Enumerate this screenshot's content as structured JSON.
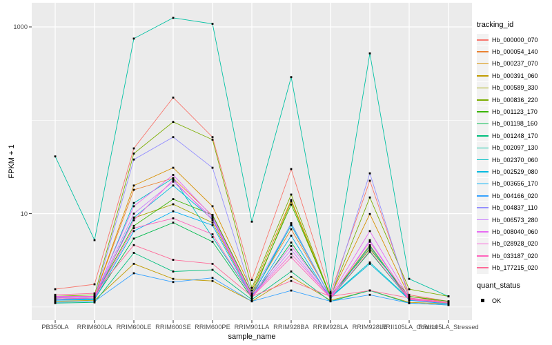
{
  "chart_data": {
    "type": "line",
    "title": "",
    "xlabel": "sample_name",
    "ylabel": "FPKM + 1",
    "y_scale": "log10",
    "grid": true,
    "panel_bg": "#EBEBEB",
    "grid_color": "#FFFFFF",
    "point_marker": "black-square",
    "y_ticks": [
      {
        "value": 1000,
        "label": "1000"
      },
      {
        "value": 10,
        "label": "10"
      }
    ],
    "y_minor_gridlines": [
      100,
      1
    ],
    "ylim": [
      0.75,
      1800
    ],
    "x_categories": [
      "PB350LA",
      "RRIM600LA",
      "RRIM600LE",
      "RRIM600SE",
      "RRIM600PE",
      "RRIM901LA",
      "RRIM928BA",
      "RRIM928LA",
      "RRIM928LE",
      "RRII105LA_Control",
      "RRII105LA_Stressed"
    ],
    "legend": {
      "title": "tracking_id",
      "position": "right"
    },
    "quant_legend": {
      "title": "quant_status",
      "items": [
        {
          "label": "OK",
          "marker": "black-square"
        }
      ]
    },
    "series": [
      {
        "name": "Hb_000000_070",
        "color": "#F8766D",
        "values": [
          1.55,
          1.75,
          50,
          175,
          66,
          1.95,
          30,
          1.4,
          22.5,
          1.35,
          1.15
        ]
      },
      {
        "name": "Hb_000054_140",
        "color": "#EA8331",
        "values": [
          1.3,
          1.3,
          18,
          24,
          9.5,
          1.35,
          6.8,
          1.3,
          4.4,
          1.25,
          1.1
        ]
      },
      {
        "name": "Hb_000237_070",
        "color": "#D89000",
        "values": [
          1.28,
          1.3,
          20,
          31,
          12,
          1.5,
          14,
          1.32,
          9.9,
          1.3,
          1.12
        ]
      },
      {
        "name": "Hb_000391_060",
        "color": "#C09B00",
        "values": [
          1.15,
          1.18,
          2.9,
          2.0,
          1.9,
          1.15,
          2.1,
          1.18,
          1.5,
          1.12,
          1.08
        ]
      },
      {
        "name": "Hb_000589_330",
        "color": "#A3A500",
        "values": [
          1.2,
          1.25,
          9.0,
          12.6,
          8.0,
          1.3,
          13.5,
          1.28,
          4.6,
          1.2,
          1.1
        ]
      },
      {
        "name": "Hb_000836_220",
        "color": "#7CAE00",
        "values": [
          1.3,
          1.35,
          44,
          96,
          62,
          1.6,
          16,
          1.3,
          14.9,
          1.55,
          1.3
        ]
      },
      {
        "name": "Hb_001123_170",
        "color": "#39B600",
        "values": [
          1.25,
          1.3,
          7.4,
          14.3,
          9.7,
          1.4,
          12.5,
          1.32,
          4.2,
          1.3,
          1.15
        ]
      },
      {
        "name": "Hb_001198_160",
        "color": "#00BB4E",
        "values": [
          1.2,
          1.22,
          5.4,
          8.0,
          5.0,
          1.25,
          4.9,
          1.25,
          3.9,
          1.2,
          1.1
        ]
      },
      {
        "name": "Hb_001248_170",
        "color": "#00BF7D",
        "values": [
          1.1,
          1.12,
          3.8,
          2.4,
          2.5,
          1.2,
          2.4,
          1.15,
          1.5,
          1.1,
          1.05
        ]
      },
      {
        "name": "Hb_002097_130",
        "color": "#00C1A3",
        "values": [
          41,
          5.2,
          750,
          1250,
          1080,
          8.2,
          290,
          1.45,
          520,
          2.0,
          1.3
        ]
      },
      {
        "name": "Hb_002370_060",
        "color": "#00BFC4",
        "values": [
          1.22,
          1.25,
          13,
          24,
          5.6,
          1.3,
          7.5,
          1.28,
          3.0,
          1.22,
          1.1
        ]
      },
      {
        "name": "Hb_002529_080",
        "color": "#00BAE0",
        "values": [
          1.2,
          1.22,
          9.1,
          20,
          8.7,
          1.28,
          7.9,
          1.26,
          2.9,
          1.2,
          1.08
        ]
      },
      {
        "name": "Hb_003656_170",
        "color": "#00B0F6",
        "values": [
          1.18,
          1.2,
          6.5,
          10.6,
          7.5,
          1.25,
          5.8,
          1.22,
          4.5,
          1.18,
          1.08
        ]
      },
      {
        "name": "Hb_004166_020",
        "color": "#35A2FF",
        "values": [
          1.12,
          1.15,
          2.3,
          1.85,
          2.05,
          1.15,
          1.5,
          1.15,
          1.35,
          1.1,
          1.05
        ]
      },
      {
        "name": "Hb_004837_110",
        "color": "#9590FF",
        "values": [
          1.2,
          1.25,
          38,
          66,
          31,
          1.4,
          7.8,
          1.25,
          27,
          1.25,
          1.1
        ]
      },
      {
        "name": "Hb_006573_280",
        "color": "#C77CFF",
        "values": [
          1.25,
          1.28,
          10,
          22,
          9.0,
          1.3,
          4.1,
          1.25,
          5.2,
          1.2,
          1.1
        ]
      },
      {
        "name": "Hb_008040_060",
        "color": "#E76BF3",
        "values": [
          1.3,
          1.3,
          12,
          26,
          9.3,
          1.35,
          4.5,
          1.3,
          6.5,
          1.25,
          1.12
        ]
      },
      {
        "name": "Hb_028928_020",
        "color": "#FA62DB",
        "values": [
          1.28,
          1.3,
          8.5,
          23,
          8.5,
          1.3,
          3.7,
          1.28,
          5.0,
          1.22,
          1.1
        ]
      },
      {
        "name": "Hb_033187_020",
        "color": "#FF62BC",
        "values": [
          1.22,
          1.25,
          7.0,
          8.9,
          6.0,
          1.28,
          3.4,
          1.25,
          4.0,
          1.2,
          1.1
        ]
      },
      {
        "name": "Hb_177215_020",
        "color": "#FF6A98",
        "values": [
          1.35,
          1.4,
          4.6,
          3.2,
          2.9,
          1.3,
          1.9,
          1.3,
          1.5,
          1.25,
          1.1
        ]
      }
    ]
  },
  "colors": {
    "panel_bg": "#EBEBEB",
    "grid": "#FFFFFF",
    "tick_mark": "#333333",
    "tick_text": "#4D4D4D",
    "axis_title": "#000000",
    "point": "#000000",
    "legend_key_bg": "#F2F2F2"
  }
}
